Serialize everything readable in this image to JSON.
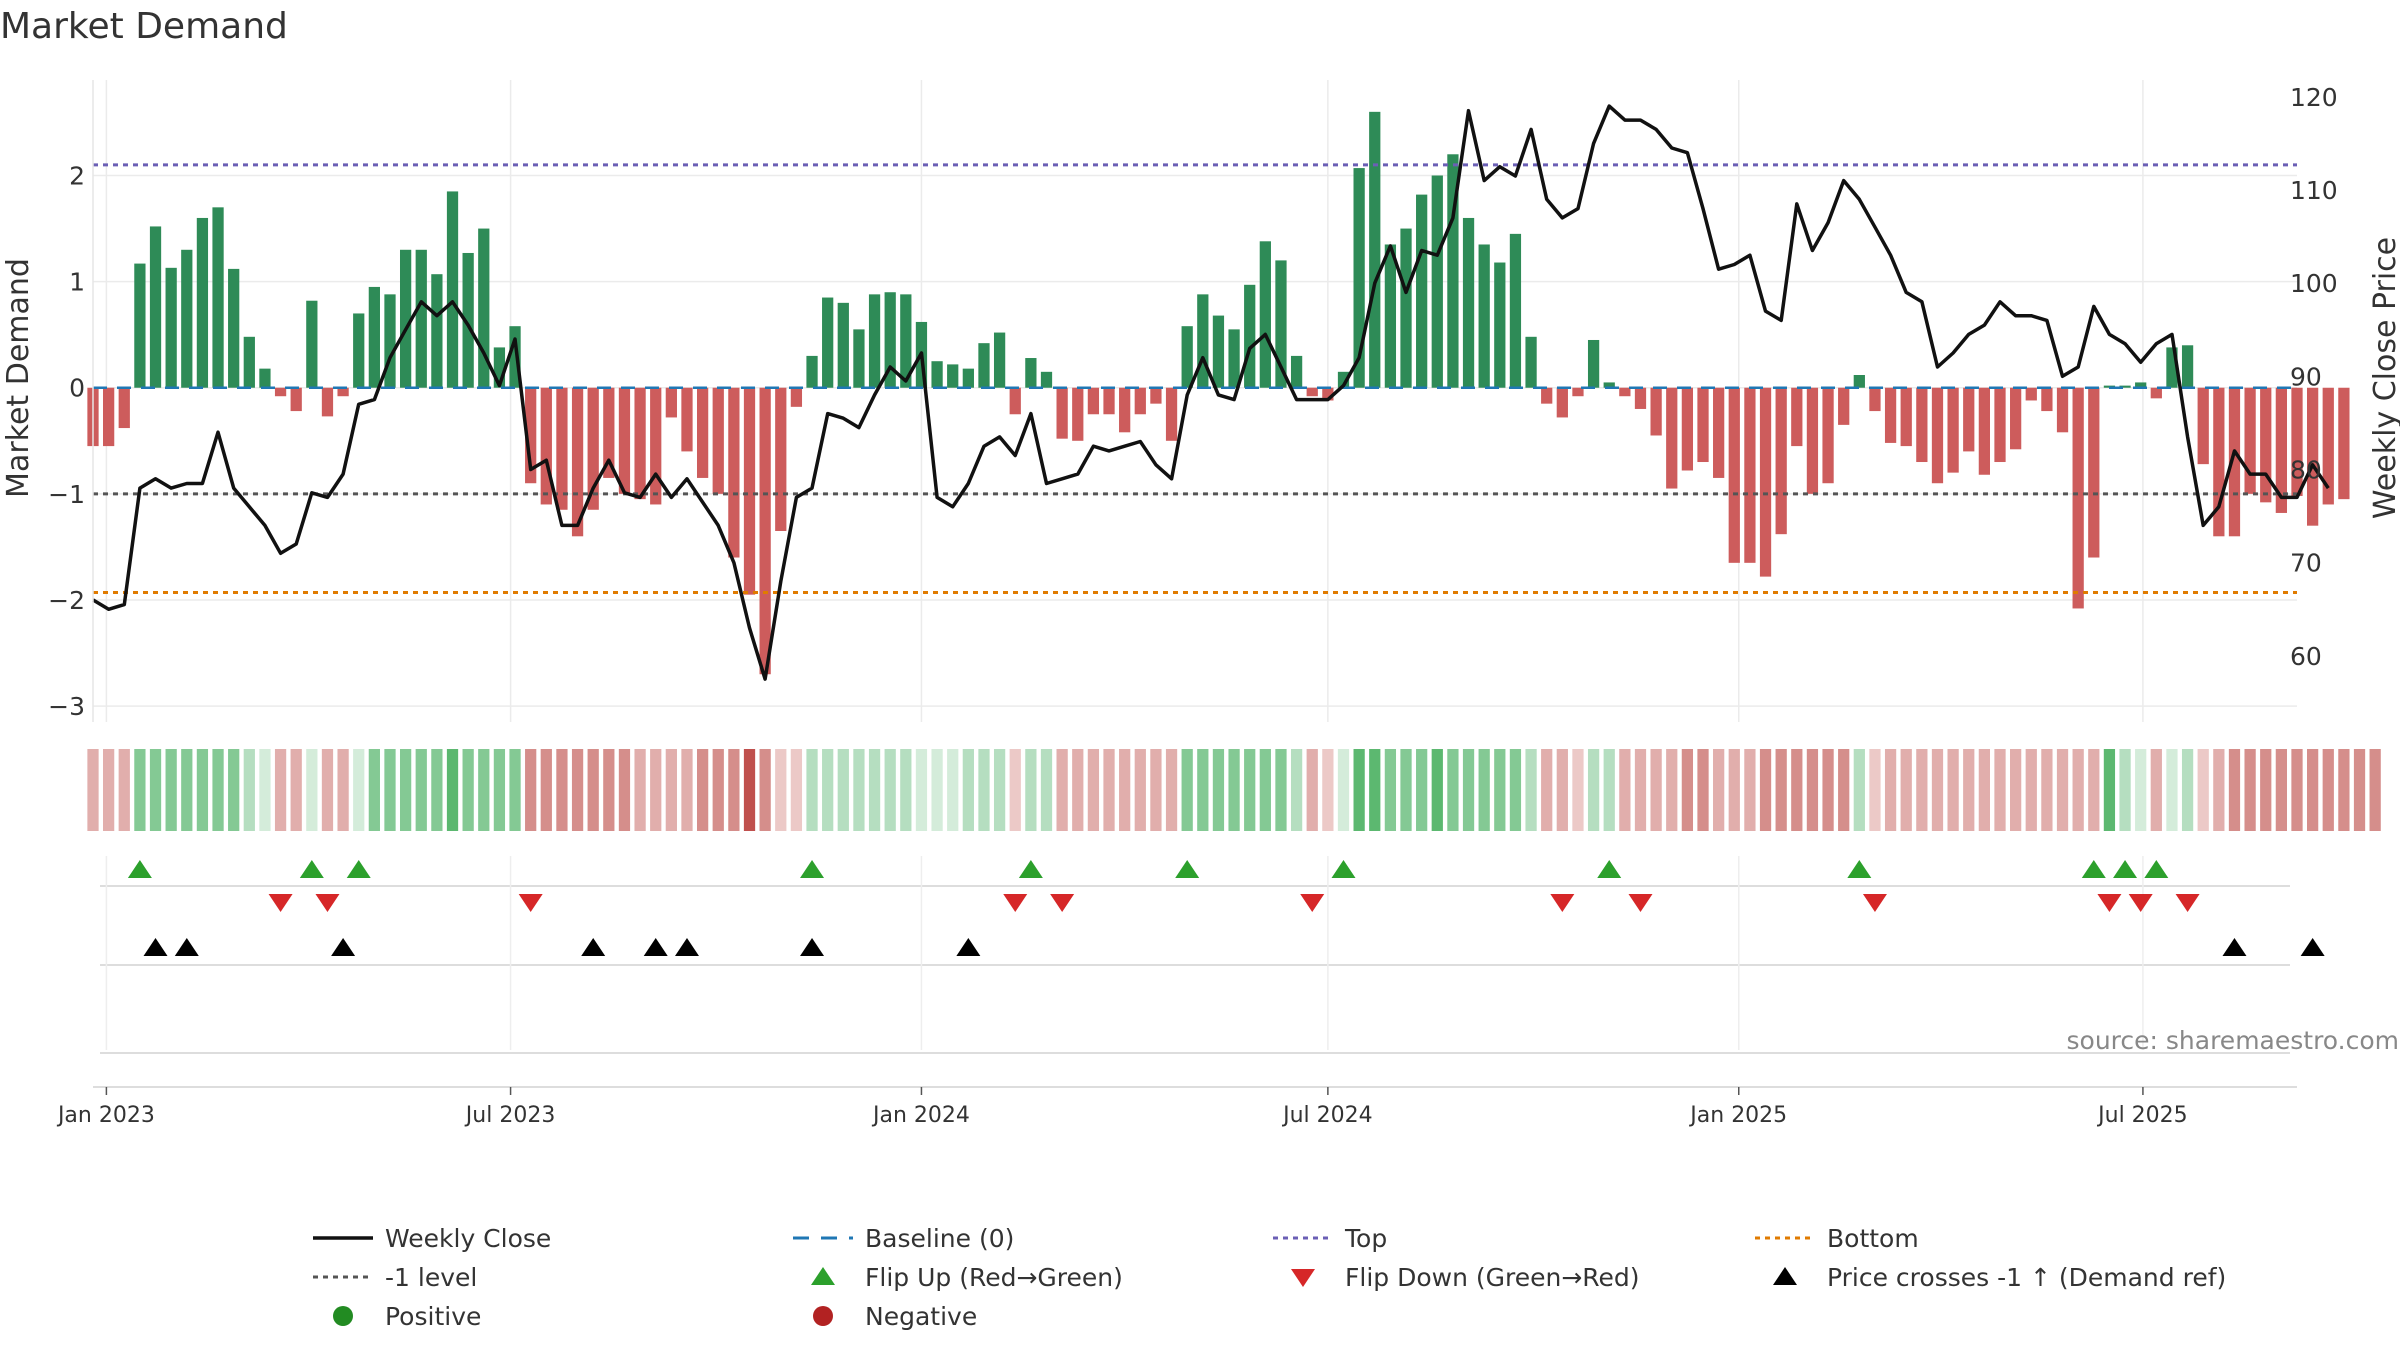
{
  "chart_data": {
    "type": "bar",
    "title": "Market Demand",
    "ylabel_left": "Market Demand",
    "ylabel_right": "Weekly Close Price",
    "ylim_left": [
      -3.15,
      2.9
    ],
    "ylim_right": [
      52.9,
      121.8
    ],
    "yticks_left": [
      2,
      1,
      0,
      -1,
      -2,
      -3
    ],
    "yticks_left_labels": [
      "2",
      "1",
      "0",
      "−1",
      "−2",
      "−3"
    ],
    "yticks_right": [
      120,
      110,
      100,
      90,
      80,
      70,
      60
    ],
    "yticks_right_labels": [
      "120",
      "110",
      "100",
      "90",
      "80",
      "70",
      "60"
    ],
    "x_start": "2022-12-26",
    "x_end": "2025-09-08",
    "week_start": "2022-12-26",
    "xticks": [
      {
        "date": "2023-01-01",
        "label": "Jan 2023"
      },
      {
        "date": "2023-07-01",
        "label": "Jul 2023"
      },
      {
        "date": "2024-01-01",
        "label": "Jan 2024"
      },
      {
        "date": "2024-07-01",
        "label": "Jul 2024"
      },
      {
        "date": "2025-01-01",
        "label": "Jan 2025"
      },
      {
        "date": "2025-07-01",
        "label": "Jul 2025"
      }
    ],
    "levels": {
      "top": 2.1,
      "bottom": -1.93,
      "minus_one": -1,
      "baseline": 0
    },
    "demand": [
      -0.55,
      -0.55,
      -0.38,
      1.17,
      1.52,
      1.13,
      1.3,
      1.6,
      1.7,
      1.12,
      0.48,
      0.18,
      -0.08,
      -0.22,
      0.82,
      -0.27,
      -0.08,
      0.7,
      0.95,
      0.88,
      1.3,
      1.3,
      1.07,
      1.85,
      1.27,
      1.5,
      0.38,
      0.58,
      -0.9,
      -1.1,
      -1.15,
      -1.4,
      -1.15,
      -0.85,
      -1.0,
      -1.05,
      -1.1,
      -0.28,
      -0.6,
      -0.85,
      -1.0,
      -1.6,
      -1.95,
      -2.7,
      -1.35,
      -0.18,
      0.3,
      0.85,
      0.8,
      0.55,
      0.88,
      0.9,
      0.88,
      0.62,
      0.25,
      0.22,
      0.18,
      0.42,
      0.52,
      -0.25,
      0.28,
      0.15,
      -0.48,
      -0.5,
      -0.25,
      -0.25,
      -0.42,
      -0.25,
      -0.15,
      -0.5,
      0.58,
      0.88,
      0.68,
      0.55,
      0.97,
      1.38,
      1.2,
      0.3,
      -0.08,
      -0.12,
      0.15,
      2.07,
      2.6,
      1.35,
      1.5,
      1.82,
      2.0,
      2.2,
      1.6,
      1.35,
      1.18,
      1.45,
      0.48,
      -0.15,
      -0.28,
      -0.08,
      0.45,
      0.05,
      -0.08,
      -0.2,
      -0.45,
      -0.95,
      -0.78,
      -0.7,
      -0.85,
      -1.65,
      -1.65,
      -1.78,
      -1.38,
      -0.55,
      -1.0,
      -0.9,
      -0.35,
      0.12,
      -0.22,
      -0.52,
      -0.55,
      -0.7,
      -0.9,
      -0.8,
      -0.6,
      -0.82,
      -0.7,
      -0.58,
      -0.12,
      -0.22,
      -0.42,
      -2.08,
      -1.6,
      0.02,
      0.02,
      0.05,
      -0.1,
      0.38,
      0.4,
      -0.72,
      -1.4,
      -1.4,
      -1.0,
      -1.08,
      -1.18,
      -1.02,
      -1.3,
      -1.1,
      -1.05
    ],
    "close": [
      66.0,
      65.0,
      65.5,
      78.0,
      79.0,
      78.0,
      78.5,
      78.5,
      84.0,
      78.0,
      76.0,
      74.0,
      71.0,
      72.0,
      77.5,
      77.0,
      79.5,
      87.0,
      87.5,
      92.0,
      95.0,
      98.0,
      96.5,
      98.0,
      95.5,
      92.5,
      89.0,
      94.0,
      80.0,
      81.0,
      74.0,
      74.0,
      78.0,
      81.0,
      77.5,
      77.0,
      79.5,
      77.0,
      79.0,
      76.5,
      74.0,
      70.0,
      63.0,
      57.5,
      68.0,
      77.0,
      78.0,
      86.0,
      85.5,
      84.5,
      88.0,
      91.0,
      89.5,
      92.5,
      77.0,
      76.0,
      78.5,
      82.5,
      83.5,
      81.5,
      86.0,
      78.5,
      79.0,
      79.5,
      82.5,
      82.0,
      82.5,
      83.0,
      80.5,
      79.0,
      88.0,
      92.0,
      88.0,
      87.5,
      93.0,
      94.5,
      91.0,
      87.5,
      87.5,
      87.5,
      89.0,
      92.0,
      100.0,
      104.0,
      99.0,
      103.5,
      103.0,
      107.0,
      118.5,
      111.0,
      112.5,
      111.5,
      116.5,
      109.0,
      107.0,
      108.0,
      115.0,
      119.0,
      117.5,
      117.5,
      116.5,
      114.5,
      114.0,
      108.0,
      101.5,
      102.0,
      103.0,
      97.0,
      96.0,
      108.5,
      103.5,
      106.5,
      111.0,
      109.0,
      106.0,
      103.0,
      99.0,
      98.0,
      91.0,
      92.5,
      94.5,
      95.5,
      98.0,
      96.5,
      96.5,
      96.0,
      90.0,
      91.0,
      97.5,
      94.5,
      93.5,
      91.5,
      93.5,
      94.5,
      83.5,
      74.0,
      76.0,
      82.0,
      79.5,
      79.5,
      77.0,
      77.0,
      80.5,
      78.0
    ],
    "bands": [
      2,
      2,
      2,
      1,
      1,
      1,
      1,
      1,
      1,
      1,
      2,
      3,
      2,
      2,
      3,
      2,
      2,
      3,
      1,
      1,
      1,
      1,
      1,
      0,
      1,
      1,
      1,
      1,
      1,
      1,
      1,
      1,
      1,
      1,
      1,
      2,
      2,
      2,
      2,
      1,
      1,
      1,
      0,
      1,
      3,
      3,
      2,
      2,
      2,
      2,
      2,
      2,
      2,
      3,
      3,
      3,
      2,
      2,
      2,
      3,
      2,
      2,
      2,
      2,
      2,
      2,
      2,
      2,
      2,
      2,
      1,
      1,
      1,
      1,
      1,
      1,
      1,
      2,
      2,
      3,
      3,
      0,
      0,
      1,
      1,
      1,
      0,
      1,
      1,
      1,
      1,
      1,
      2,
      2,
      2,
      3,
      2,
      2,
      2,
      2,
      2,
      2,
      1,
      1,
      2,
      2,
      2,
      1,
      1,
      1,
      1,
      1,
      1,
      2,
      3,
      2,
      2,
      2,
      2,
      2,
      2,
      2,
      2,
      2,
      2,
      2,
      2,
      2,
      2,
      0,
      2,
      3,
      2,
      3,
      2,
      3,
      2,
      1,
      1,
      1,
      1,
      1,
      1,
      1,
      1,
      1,
      1
    ],
    "flip_up_weeks": [
      3,
      14,
      17,
      46,
      60,
      70,
      80,
      97,
      113,
      128,
      130,
      132
    ],
    "flip_down_weeks": [
      12,
      15,
      28,
      59,
      62,
      78,
      94,
      99,
      114,
      129,
      131,
      134
    ],
    "cross_weeks": [
      4,
      6,
      16,
      32,
      36,
      38,
      46,
      56,
      137,
      142
    ],
    "legend": [
      {
        "label": "Weekly Close",
        "kind": "line",
        "color": "#111111"
      },
      {
        "label": "Baseline (0)",
        "kind": "dashed",
        "color": "#1f77b4"
      },
      {
        "label": "Top",
        "kind": "dotted",
        "color": "#6b5fb5"
      },
      {
        "label": "Bottom",
        "kind": "dotted",
        "color": "#e07b00"
      },
      {
        "label": "-1 level",
        "kind": "dotted",
        "color": "#555555"
      },
      {
        "label": "Flip Up (Red→Green)",
        "kind": "tri-up",
        "color": "#2ca02c"
      },
      {
        "label": "Flip Down (Green→Red)",
        "kind": "tri-down",
        "color": "#d62728"
      },
      {
        "label": "Price crosses -1 ↑ (Demand ref)",
        "kind": "tri-up",
        "color": "#000000"
      },
      {
        "label": "Positive",
        "kind": "dot",
        "color": "#228b22"
      },
      {
        "label": "Negative",
        "kind": "dot",
        "color": "#b22222"
      }
    ],
    "source": "source: sharemaestro.com"
  },
  "colors": {
    "positive_bar": "#2e8b57",
    "negative_bar": "#cd5c5c",
    "line": "#111111",
    "grid": "#ebebeb",
    "pos_bands": [
      "#5cb870",
      "#84c994",
      "#b5dec0",
      "#d4ecda"
    ],
    "neg_bands": [
      "#c0504d",
      "#d58e8b",
      "#e1aeac",
      "#ecc9c7"
    ]
  }
}
